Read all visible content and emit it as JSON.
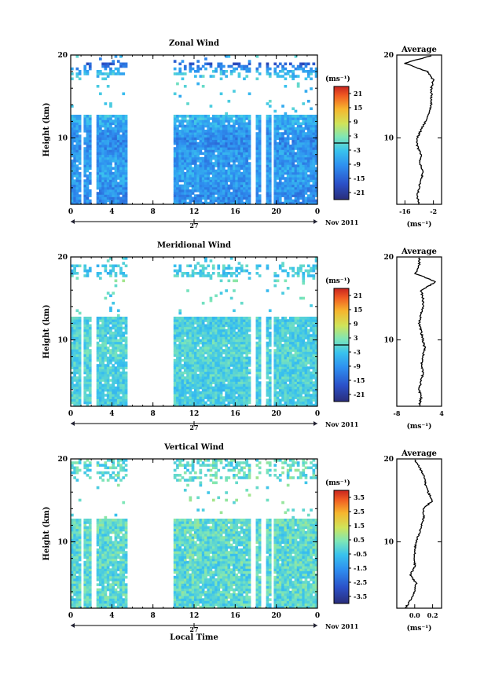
{
  "chart_data": [
    {
      "type": "heatmap",
      "title": "Zonal Wind",
      "ylabel": "Height (km)",
      "xticks": [
        "0",
        "4",
        "8",
        "12",
        "16",
        "20",
        "0"
      ],
      "yticks": [
        "10",
        "20"
      ],
      "date_label": "27",
      "date_suffix": "Nov 2011",
      "ylim": [
        2,
        20
      ],
      "xlim": [
        0,
        24
      ],
      "colorbar": {
        "unit": "(ms⁻¹)",
        "ticks": [
          "21",
          "15",
          "9",
          "3",
          "-3",
          "-9",
          "-15",
          "-21"
        ],
        "range": [
          -24,
          24
        ],
        "contour_at": 0
      },
      "data_gaps_hours": [
        [
          0.9,
          1.2
        ],
        [
          2.0,
          2.5
        ],
        [
          5.5,
          9.9
        ],
        [
          17.6,
          18.0
        ],
        [
          18.6,
          18.9
        ],
        [
          19.5,
          19.8
        ]
      ],
      "average_profile": {
        "title": "Average",
        "xlabel": "(ms⁻¹)",
        "xticks": [
          "-16",
          "-2"
        ],
        "xlim": [
          -20,
          2
        ],
        "yticks": [
          "10",
          "20"
        ],
        "heights": [
          2,
          3,
          4,
          5,
          6,
          7,
          8,
          9,
          10,
          11,
          12,
          13,
          14,
          15,
          16,
          17,
          18,
          19,
          20
        ],
        "values": [
          -9,
          -10,
          -9,
          -8,
          -7,
          -9,
          -8,
          -10,
          -10,
          -8,
          -6,
          -4,
          -3,
          -3,
          -3,
          -2,
          -5,
          -16,
          -2
        ]
      }
    },
    {
      "type": "heatmap",
      "title": "Meridional Wind",
      "ylabel": "Height (km)",
      "xticks": [
        "0",
        "4",
        "8",
        "12",
        "16",
        "20",
        "0"
      ],
      "yticks": [
        "10",
        "20"
      ],
      "date_label": "27",
      "date_suffix": "Nov 2011",
      "ylim": [
        2,
        20
      ],
      "xlim": [
        0,
        24
      ],
      "colorbar": {
        "unit": "(ms⁻¹)",
        "ticks": [
          "21",
          "15",
          "9",
          "3",
          "-3",
          "-9",
          "-15",
          "-21"
        ],
        "range": [
          -24,
          24
        ],
        "contour_at": 0
      },
      "data_gaps_hours": [
        [
          0.9,
          1.2
        ],
        [
          2.0,
          2.5
        ],
        [
          5.5,
          9.9
        ],
        [
          17.6,
          18.0
        ],
        [
          18.6,
          18.9
        ],
        [
          19.5,
          19.8
        ]
      ],
      "average_profile": {
        "title": "Average",
        "xlabel": "(ms⁻¹)",
        "xticks": [
          "-8",
          "4"
        ],
        "xlim": [
          -8,
          4
        ],
        "yticks": [
          "10",
          "20"
        ],
        "heights": [
          2,
          3,
          4,
          5,
          6,
          7,
          8,
          9,
          10,
          11,
          12,
          13,
          14,
          15,
          16,
          17,
          18,
          19,
          20
        ],
        "values": [
          -2,
          -1.5,
          -2,
          -1.5,
          -1,
          -1.5,
          -1,
          -0.5,
          -1,
          -1.5,
          -2,
          -1.5,
          -1,
          -1,
          -1.5,
          2.5,
          -3,
          -2,
          -2
        ]
      }
    },
    {
      "type": "heatmap",
      "title": "Vertical Wind",
      "ylabel": "Height (km)",
      "xlabel": "Local Time",
      "xticks": [
        "0",
        "4",
        "8",
        "12",
        "16",
        "20",
        "0"
      ],
      "yticks": [
        "10",
        "20"
      ],
      "date_label": "27",
      "date_suffix": "Nov 2011",
      "ylim": [
        2,
        20
      ],
      "xlim": [
        0,
        24
      ],
      "colorbar": {
        "unit": "(ms⁻¹)",
        "ticks": [
          "3.5",
          "2.5",
          "1.5",
          "0.5",
          "-0.5",
          "-1.5",
          "-2.5",
          "-3.5"
        ],
        "range": [
          -4,
          4
        ]
      },
      "data_gaps_hours": [
        [
          0.9,
          1.2
        ],
        [
          2.0,
          2.5
        ],
        [
          5.5,
          9.9
        ],
        [
          17.6,
          18.0
        ],
        [
          18.6,
          18.9
        ],
        [
          19.5,
          19.8
        ]
      ],
      "average_profile": {
        "title": "Average",
        "xlabel": "(ms⁻¹)",
        "xticks": [
          "0.0",
          "0.2"
        ],
        "xlim": [
          -0.2,
          0.3
        ],
        "yticks": [
          "10",
          "20"
        ],
        "heights": [
          2,
          3,
          4,
          5,
          6,
          7,
          8,
          9,
          10,
          11,
          12,
          13,
          14,
          15,
          16,
          17,
          18,
          19,
          20
        ],
        "values": [
          -0.1,
          -0.05,
          0.0,
          0.02,
          -0.05,
          0.0,
          0.0,
          0.0,
          0.02,
          0.05,
          0.08,
          0.1,
          0.1,
          0.2,
          0.15,
          0.12,
          0.1,
          0.05,
          0.0
        ]
      }
    }
  ]
}
